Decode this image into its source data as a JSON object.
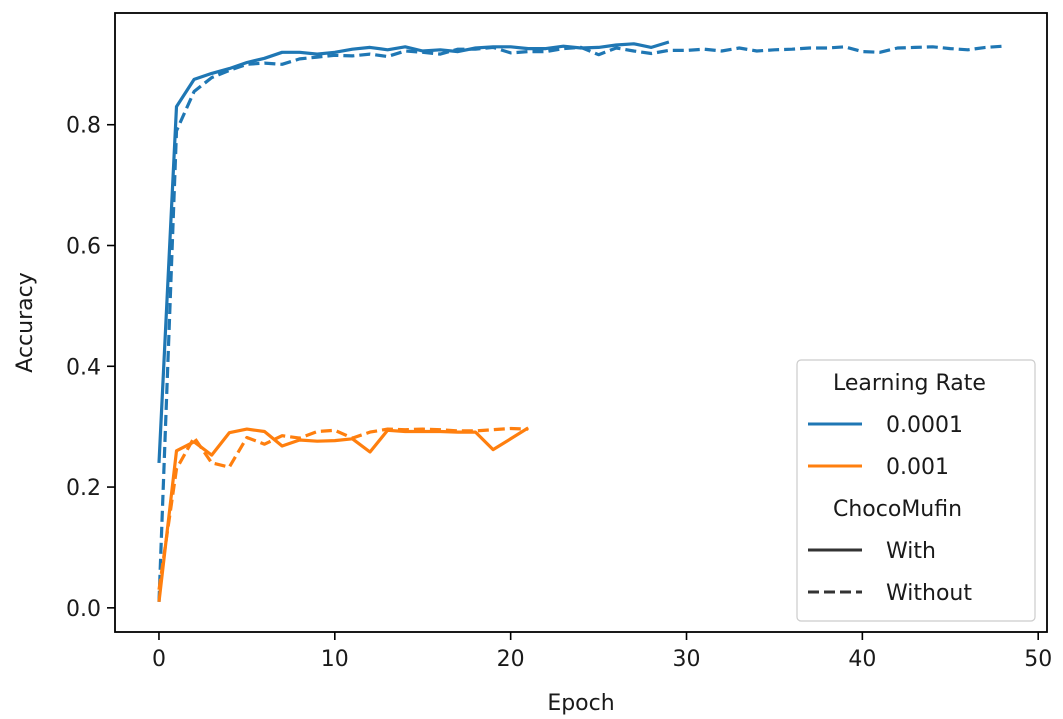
{
  "chart_data": {
    "type": "line",
    "title": "",
    "xlabel": "Epoch",
    "ylabel": "Accuracy",
    "xlim": [
      -2.5,
      50.5
    ],
    "ylim": [
      -0.04,
      0.985
    ],
    "xticks": [
      0,
      10,
      20,
      30,
      40,
      50
    ],
    "yticks": [
      0.0,
      0.2,
      0.4,
      0.6,
      0.8
    ],
    "xtick_labels": [
      "0",
      "10",
      "20",
      "30",
      "40",
      "50"
    ],
    "ytick_labels": [
      "0.0",
      "0.2",
      "0.4",
      "0.6",
      "0.8"
    ],
    "grid": false,
    "legend_position": "bottom-right",
    "legend": {
      "hue_title": "Learning Rate",
      "hue_entries": [
        {
          "label": "0.0001",
          "color": "#1f77b4"
        },
        {
          "label": "0.001",
          "color": "#ff7f0e"
        }
      ],
      "style_title": "ChocoMufin",
      "style_entries": [
        {
          "label": "With",
          "dash": "solid"
        },
        {
          "label": "Without",
          "dash": "dashed"
        }
      ]
    },
    "series": [
      {
        "learning_rate": "0.0001",
        "choco_mufin": "With",
        "color": "#1f77b4",
        "dash": "solid",
        "x": [
          0,
          1,
          2,
          3,
          4,
          5,
          6,
          7,
          8,
          9,
          10,
          11,
          12,
          13,
          14,
          15,
          16,
          17,
          18,
          19,
          20,
          21,
          22,
          23,
          24,
          25,
          26,
          27,
          28,
          29
        ],
        "y": [
          0.24,
          0.83,
          0.875,
          0.885,
          0.893,
          0.903,
          0.91,
          0.92,
          0.92,
          0.917,
          0.92,
          0.925,
          0.928,
          0.924,
          0.929,
          0.922,
          0.924,
          0.921,
          0.927,
          0.929,
          0.929,
          0.926,
          0.926,
          0.93,
          0.927,
          0.928,
          0.932,
          0.934,
          0.928,
          0.937
        ]
      },
      {
        "learning_rate": "0.0001",
        "choco_mufin": "Without",
        "color": "#1f77b4",
        "dash": "dashed",
        "x": [
          0,
          1,
          2,
          3,
          4,
          5,
          6,
          7,
          8,
          9,
          10,
          11,
          12,
          13,
          14,
          15,
          16,
          17,
          18,
          19,
          20,
          21,
          22,
          23,
          24,
          25,
          26,
          27,
          28,
          29,
          30,
          31,
          32,
          33,
          34,
          35,
          36,
          37,
          38,
          39,
          40,
          41,
          42,
          43,
          44,
          45,
          46,
          47,
          48
        ],
        "y": [
          0.01,
          0.79,
          0.855,
          0.878,
          0.89,
          0.9,
          0.902,
          0.9,
          0.909,
          0.912,
          0.915,
          0.914,
          0.917,
          0.913,
          0.922,
          0.92,
          0.917,
          0.925,
          0.925,
          0.928,
          0.919,
          0.921,
          0.921,
          0.926,
          0.928,
          0.916,
          0.927,
          0.922,
          0.918,
          0.923,
          0.923,
          0.925,
          0.922,
          0.927,
          0.922,
          0.924,
          0.925,
          0.927,
          0.927,
          0.929,
          0.921,
          0.92,
          0.927,
          0.928,
          0.929,
          0.926,
          0.924,
          0.928,
          0.93
        ]
      },
      {
        "learning_rate": "0.001",
        "choco_mufin": "With",
        "color": "#ff7f0e",
        "dash": "solid",
        "x": [
          0,
          1,
          2,
          3,
          4,
          5,
          6,
          7,
          8,
          9,
          10,
          11,
          12,
          13,
          14,
          15,
          16,
          17,
          18,
          19,
          20,
          21
        ],
        "y": [
          0.01,
          0.26,
          0.275,
          0.253,
          0.29,
          0.296,
          0.292,
          0.268,
          0.278,
          0.276,
          0.277,
          0.28,
          0.258,
          0.294,
          0.292,
          0.292,
          0.292,
          0.291,
          0.291,
          0.262,
          0.28,
          0.298
        ]
      },
      {
        "learning_rate": "0.001",
        "choco_mufin": "Without",
        "color": "#ff7f0e",
        "dash": "dashed",
        "x": [
          0,
          1,
          2,
          3,
          4,
          5,
          6,
          7,
          8,
          9,
          10,
          11,
          12,
          13,
          14,
          15,
          16,
          17,
          18,
          19,
          20,
          21
        ],
        "y": [
          0.03,
          0.23,
          0.282,
          0.24,
          0.233,
          0.282,
          0.271,
          0.285,
          0.281,
          0.292,
          0.294,
          0.281,
          0.291,
          0.296,
          0.295,
          0.296,
          0.295,
          0.293,
          0.293,
          0.295,
          0.297,
          0.296
        ]
      }
    ]
  }
}
